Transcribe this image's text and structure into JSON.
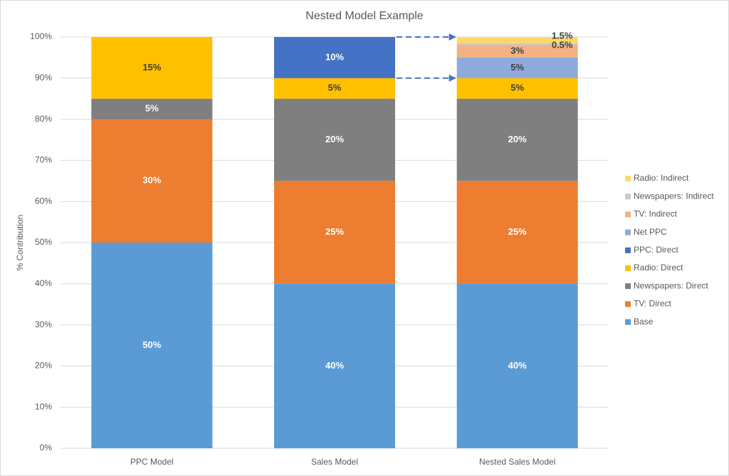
{
  "chart_data": {
    "type": "stacked-bar",
    "title": "Nested Model Example",
    "y_label": "% Contribution",
    "categories": [
      "PPC Model",
      "Sales Model",
      "Nested Sales Model"
    ],
    "ylim": [
      0,
      100
    ],
    "yticks": [
      {
        "value": 0,
        "label": "0%"
      },
      {
        "value": 10,
        "label": "10%"
      },
      {
        "value": 20,
        "label": "20%"
      },
      {
        "value": 30,
        "label": "30%"
      },
      {
        "value": 40,
        "label": "40%"
      },
      {
        "value": 50,
        "label": "50%"
      },
      {
        "value": 60,
        "label": "60%"
      },
      {
        "value": 70,
        "label": "70%"
      },
      {
        "value": 80,
        "label": "80%"
      },
      {
        "value": 90,
        "label": "90%"
      },
      {
        "value": 100,
        "label": "100%"
      }
    ],
    "grid": true,
    "legend": "right",
    "series": [
      {
        "name": "Base",
        "color": "#5b9bd5",
        "values": [
          50,
          40,
          40
        ],
        "value_labels": [
          "50%",
          "40%",
          "40%"
        ]
      },
      {
        "name": "TV: Direct",
        "color": "#ed7d31",
        "values": [
          30,
          25,
          25
        ],
        "value_labels": [
          "30%",
          "25%",
          "25%"
        ]
      },
      {
        "name": "Newspapers: Direct",
        "color": "#7f7f7f",
        "values": [
          5,
          20,
          20
        ],
        "value_labels": [
          "5%",
          "20%",
          "20%"
        ]
      },
      {
        "name": "Radio: Direct",
        "color": "#ffc000",
        "values": [
          15,
          5,
          5
        ],
        "value_labels": [
          "15%",
          "5%",
          "5%"
        ]
      },
      {
        "name": "PPC: Direct",
        "color": "#4472c4",
        "values": [
          null,
          10,
          null
        ],
        "value_labels": [
          null,
          "10%",
          null
        ]
      },
      {
        "name": "Net PPC",
        "color": "#8faadc",
        "values": [
          null,
          null,
          5
        ],
        "value_labels": [
          null,
          null,
          "5%"
        ]
      },
      {
        "name": "TV: Indirect",
        "color": "#f4b183",
        "values": [
          null,
          null,
          3
        ],
        "value_labels": [
          null,
          null,
          "3%"
        ]
      },
      {
        "name": "Newspapers: Indirect",
        "color": "#c9c9c9",
        "values": [
          null,
          null,
          0.5
        ],
        "value_labels": [
          null,
          null,
          "0.5%"
        ]
      },
      {
        "name": "Radio: Indirect",
        "color": "#ffd966",
        "values": [
          null,
          null,
          1.5
        ],
        "value_labels": [
          null,
          null,
          "1.5%"
        ]
      }
    ]
  }
}
